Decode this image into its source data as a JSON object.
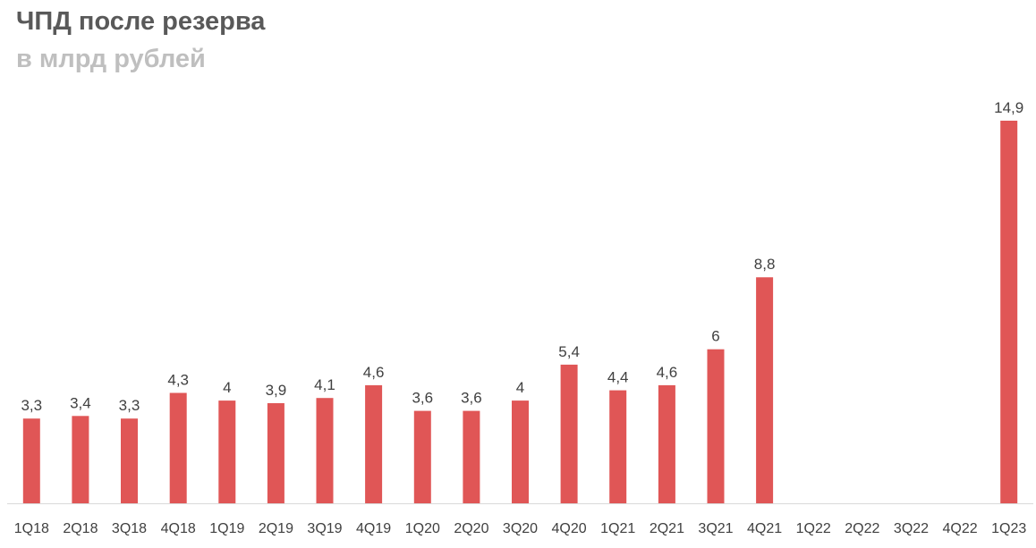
{
  "chart_data": {
    "type": "bar",
    "title": "ЧПД после резерва",
    "subtitle": "в млрд рублей",
    "categories": [
      "1Q18",
      "2Q18",
      "3Q18",
      "4Q18",
      "1Q19",
      "2Q19",
      "3Q19",
      "4Q19",
      "1Q20",
      "2Q20",
      "3Q20",
      "4Q20",
      "1Q21",
      "2Q21",
      "3Q21",
      "4Q21",
      "1Q22",
      "2Q22",
      "3Q22",
      "4Q22",
      "1Q23"
    ],
    "values": [
      3.3,
      3.4,
      3.3,
      4.3,
      4,
      3.9,
      4.1,
      4.6,
      3.6,
      3.6,
      4,
      5.4,
      4.4,
      4.6,
      6,
      8.8,
      null,
      null,
      null,
      null,
      14.9
    ],
    "data_labels": [
      "3,3",
      "3,4",
      "3,3",
      "4,3",
      "4",
      "3,9",
      "4,1",
      "4,6",
      "3,6",
      "3,6",
      "4",
      "5,4",
      "4,4",
      "4,6",
      "6",
      "8,8",
      "",
      "",
      "",
      "",
      "14,9"
    ],
    "xlabel": "",
    "ylabel": "",
    "ylim": [
      0,
      14.9
    ],
    "grid": false,
    "legend": "none",
    "colors": {
      "bar": "#e05656",
      "title": "#595959",
      "subtitle": "#bfbfbf",
      "text": "#404040",
      "axis": "#d9d9d9"
    }
  }
}
